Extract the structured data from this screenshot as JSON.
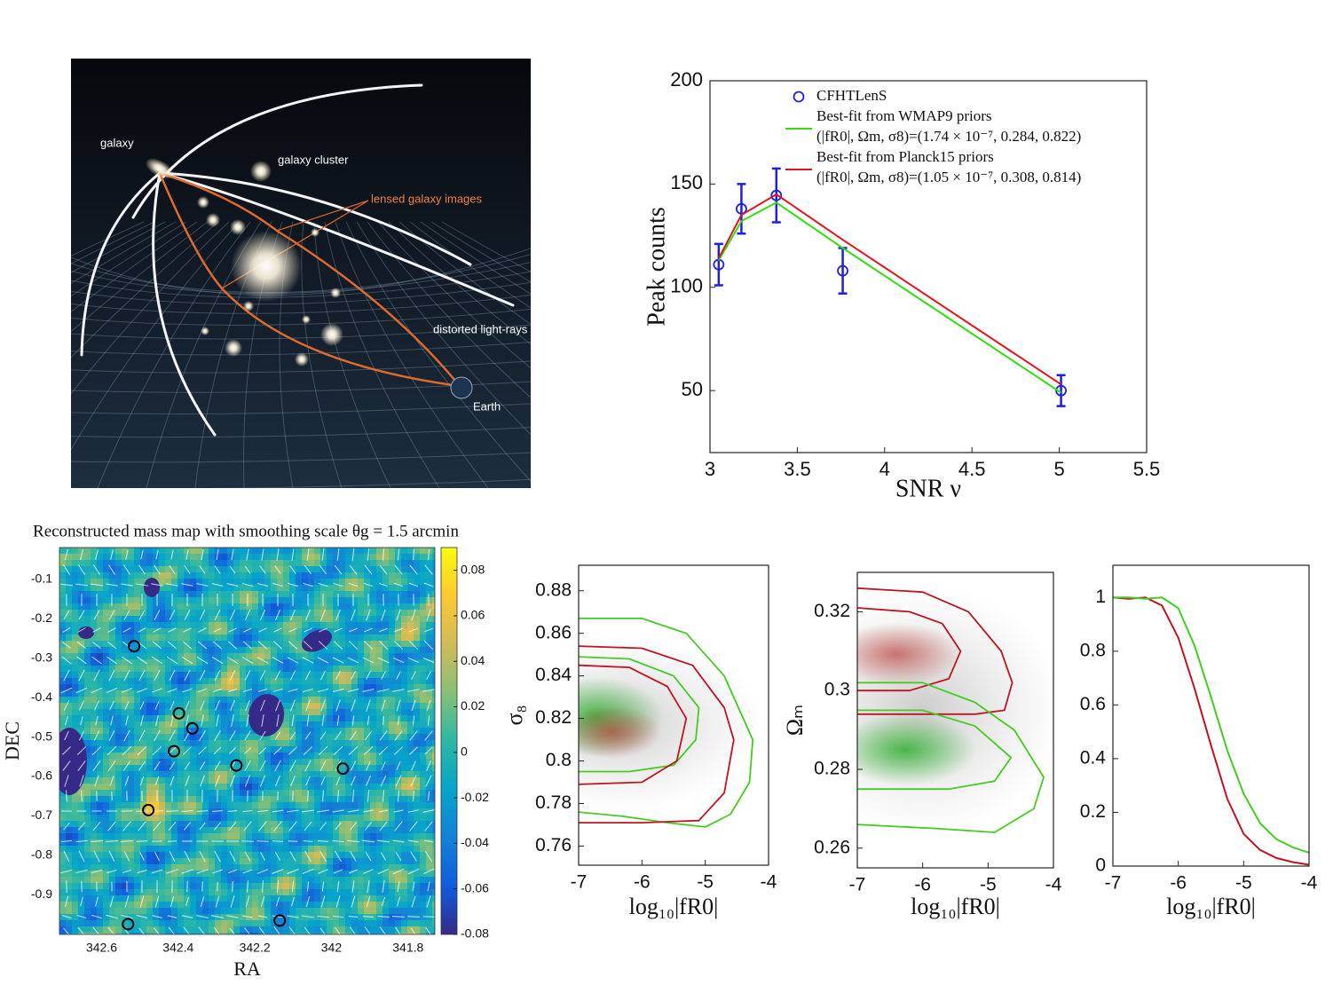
{
  "illustration": {
    "labels": [
      "galaxy",
      "galaxy cluster",
      "lensed galaxy images",
      "distorted light-rays",
      "Earth"
    ]
  },
  "chart_data": [
    {
      "type": "line",
      "xlabel": "SNR ν",
      "ylabel": "Peak counts",
      "x": [
        3.05,
        3.18,
        3.38,
        3.76,
        5.01
      ],
      "series": [
        {
          "name": "CFHTLenS",
          "color": "#1f1fe0",
          "values": [
            111,
            138,
            144.5,
            108,
            50
          ],
          "errors": [
            10,
            12,
            13,
            11,
            7.5
          ]
        },
        {
          "name": "Best-fit from WMAP9 priors",
          "parameters": "(|fR0|, Ωm, σ8)=(1.74 × 10⁻⁷, 0.284, 0.822)",
          "color": "#33dd11",
          "values": [
            113,
            132,
            141,
            119,
            49
          ]
        },
        {
          "name": "Best-fit from Planck15 priors",
          "parameters": "(|fR0|, Ωm, σ8)=(1.05 × 10⁻⁷, 0.308, 0.814)",
          "color": "#e0151f",
          "values": [
            114,
            135,
            145,
            123,
            53
          ]
        }
      ],
      "xlim": [
        3,
        5.5
      ],
      "ylim": [
        20,
        200
      ],
      "xticks": [
        3,
        3.5,
        4,
        4.5,
        5,
        5.5
      ],
      "yticks": [
        50,
        100,
        150,
        200
      ]
    },
    {
      "type": "heatmap",
      "title": "Reconstructed mass map with smoothing scale θg = 1.5 arcmin",
      "xlabel": "RA",
      "ylabel": "DEC",
      "xlim": [
        342.71,
        341.73
      ],
      "ylim": [
        -1,
        -0.02
      ],
      "xticks": [
        342.6,
        342.4,
        342.2,
        342,
        341.8
      ],
      "yticks": [
        -0.1,
        -0.2,
        -0.3,
        -0.4,
        -0.5,
        -0.6,
        -0.7,
        -0.8,
        -0.9
      ],
      "colorbar": {
        "lim": [
          -0.08,
          0.09
        ],
        "ticks": [
          -0.08,
          -0.06,
          -0.04,
          -0.02,
          0,
          0.02,
          0.04,
          0.06,
          0.08
        ],
        "colors": [
          "#352a87",
          "#0f5cdd",
          "#1481d6",
          "#06a4ca",
          "#2eb7a4",
          "#87bf77",
          "#d1bb59",
          "#fec832",
          "#f9fb0e"
        ]
      },
      "peaks": {
        "x": [
          342.515,
          342.398,
          342.363,
          342.411,
          342.248,
          341.97,
          342.478,
          342.531,
          342.135
        ],
        "y": [
          -0.27,
          -0.44,
          -0.478,
          -0.536,
          -0.572,
          -0.58,
          -0.685,
          -0.974,
          -0.965
        ]
      }
    },
    {
      "type": "contour",
      "xlabel": "log₁₀|fR0|",
      "ylabel": "σ₈",
      "xlim": [
        -7,
        -4
      ],
      "ylim": [
        0.751,
        0.892
      ],
      "xticks": [
        -7,
        -6,
        -5,
        -4
      ],
      "yticks": [
        0.76,
        0.78,
        0.8,
        0.82,
        0.84,
        0.86,
        0.88
      ],
      "contours": [
        {
          "color": "#44cc22",
          "x": [
            -7,
            -6,
            -5.3,
            -4.7,
            -4.25,
            -4.3,
            -4.6,
            -5.0,
            -5.6,
            -6.3,
            -7
          ],
          "y": [
            0.867,
            0.867,
            0.86,
            0.84,
            0.81,
            0.79,
            0.775,
            0.769,
            0.771,
            0.774,
            0.776
          ]
        },
        {
          "color": "#44cc22",
          "x": [
            -7,
            -6.2,
            -5.5,
            -5.1,
            -5.15,
            -5.5,
            -6.2,
            -7
          ],
          "y": [
            0.849,
            0.848,
            0.84,
            0.825,
            0.81,
            0.798,
            0.795,
            0.795
          ]
        },
        {
          "color": "#c0141e",
          "x": [
            -7,
            -6,
            -5.2,
            -4.7,
            -4.55,
            -4.7,
            -5.1,
            -6,
            -7
          ],
          "y": [
            0.854,
            0.853,
            0.845,
            0.825,
            0.81,
            0.785,
            0.772,
            0.771,
            0.771
          ]
        },
        {
          "color": "#c0141e",
          "x": [
            -7,
            -6.2,
            -5.6,
            -5.3,
            -5.45,
            -6,
            -7
          ],
          "y": [
            0.845,
            0.844,
            0.835,
            0.82,
            0.8,
            0.79,
            0.789
          ]
        }
      ]
    },
    {
      "type": "contour",
      "xlabel": "log₁₀|fR0|",
      "ylabel": "Ωₘ",
      "xlim": [
        -7,
        -4
      ],
      "ylim": [
        0.255,
        0.33
      ],
      "xticks": [
        -7,
        -6,
        -5,
        -4
      ],
      "yticks": [
        0.26,
        0.28,
        0.3,
        0.32
      ],
      "contours": [
        {
          "color": "#c0141e",
          "x": [
            -7,
            -6,
            -5.3,
            -4.8,
            -4.63,
            -4.75,
            -5.2,
            -6,
            -7
          ],
          "y": [
            0.326,
            0.325,
            0.32,
            0.31,
            0.302,
            0.295,
            0.294,
            0.294,
            0.294
          ]
        },
        {
          "color": "#c0141e",
          "x": [
            -7,
            -6.2,
            -5.7,
            -5.42,
            -5.6,
            -6.2,
            -7
          ],
          "y": [
            0.321,
            0.32,
            0.317,
            0.31,
            0.303,
            0.3,
            0.3
          ]
        },
        {
          "color": "#44cc22",
          "x": [
            -7,
            -6,
            -5.2,
            -4.6,
            -4.15,
            -4.3,
            -4.9,
            -5.8,
            -7
          ],
          "y": [
            0.302,
            0.302,
            0.297,
            0.29,
            0.278,
            0.27,
            0.264,
            0.265,
            0.266
          ]
        },
        {
          "color": "#44cc22",
          "x": [
            -7,
            -6,
            -5.2,
            -4.65,
            -4.9,
            -5.6,
            -7
          ],
          "y": [
            0.295,
            0.295,
            0.291,
            0.283,
            0.277,
            0.275,
            0.275
          ]
        }
      ]
    },
    {
      "type": "line",
      "xlabel": "log₁₀|fR0|",
      "xlim": [
        -7,
        -4
      ],
      "ylim": [
        0,
        1.12
      ],
      "xticks": [
        -7,
        -6,
        -5,
        -4
      ],
      "yticks": [
        0,
        0.2,
        0.4,
        0.6,
        0.8,
        1
      ],
      "x": [
        -7,
        -6.75,
        -6.5,
        -6.25,
        -6,
        -5.75,
        -5.5,
        -5.25,
        -5,
        -4.75,
        -4.5,
        -4.25,
        -4
      ],
      "series": [
        {
          "color": "#c0141e",
          "values": [
            1,
            0.995,
            1,
            0.97,
            0.85,
            0.66,
            0.45,
            0.25,
            0.12,
            0.06,
            0.03,
            0.015,
            0.005
          ]
        },
        {
          "color": "#44cc22",
          "values": [
            1,
            1,
            0.995,
            1,
            0.96,
            0.82,
            0.63,
            0.43,
            0.27,
            0.16,
            0.1,
            0.07,
            0.05
          ]
        }
      ]
    }
  ]
}
